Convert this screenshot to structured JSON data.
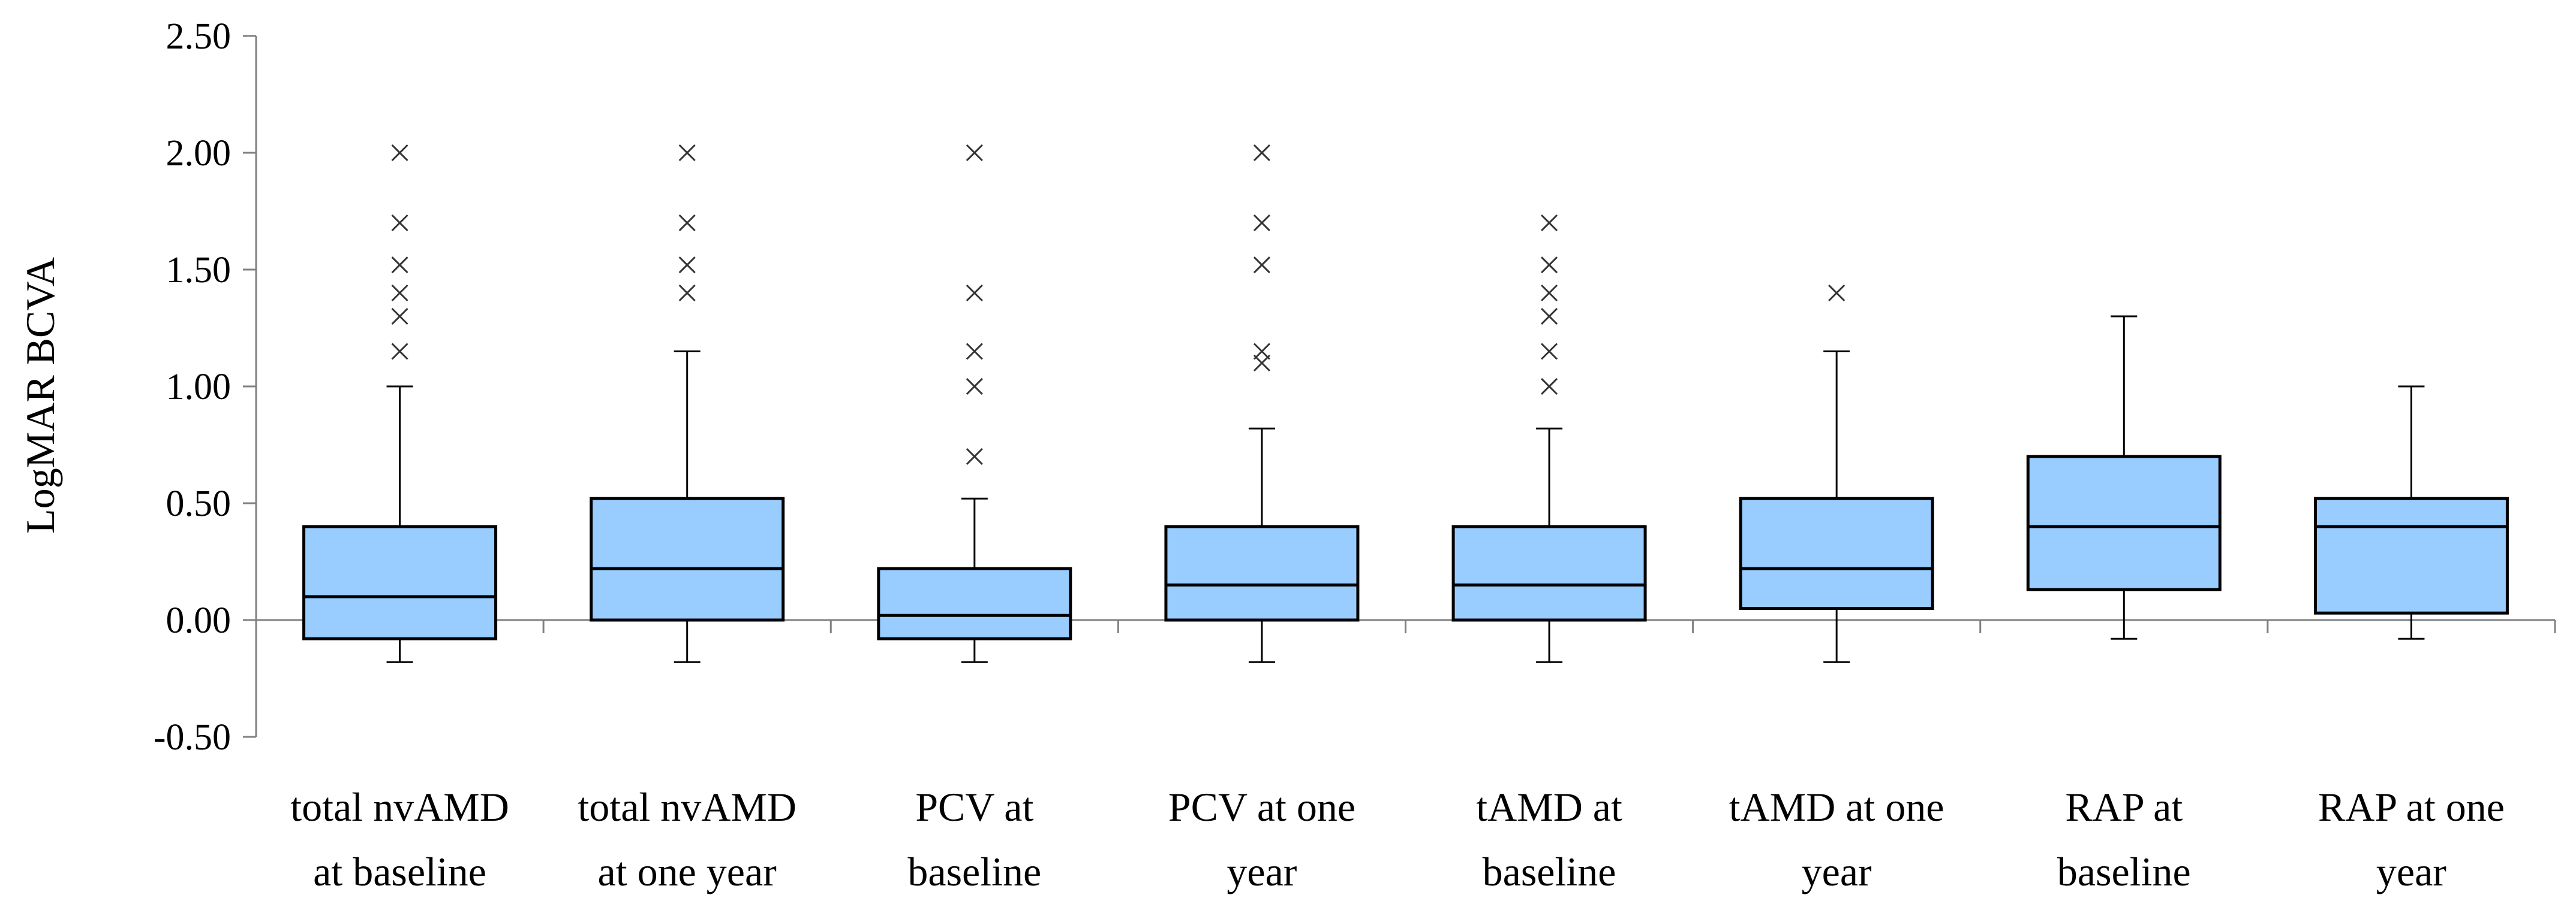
{
  "chart_data": {
    "type": "boxplot",
    "title": "",
    "xlabel": "",
    "ylabel": "LogMAR  BCVA",
    "ylim": [
      -0.5,
      2.5
    ],
    "yticks": [
      2.5,
      2.0,
      1.5,
      1.0,
      0.5,
      0.0,
      -0.5
    ],
    "ytick_labels": [
      "2.50",
      "2.00",
      "1.50",
      "1.00",
      "0.50",
      "0.00",
      "-0.50"
    ],
    "box_color": "#99CCFF",
    "line_color": "#000000",
    "axis_color": "#808080",
    "categories": [
      [
        "total nvAMD",
        "at baseline"
      ],
      [
        "total nvAMD",
        "at one year"
      ],
      [
        "PCV at",
        "baseline"
      ],
      [
        "PCV at one",
        "year"
      ],
      [
        "tAMD at",
        "baseline"
      ],
      [
        "tAMD at one",
        "year"
      ],
      [
        "RAP at",
        "baseline"
      ],
      [
        "RAP at one",
        "year"
      ]
    ],
    "boxes": [
      {
        "whisker_low": -0.18,
        "q1": -0.08,
        "median": 0.1,
        "q3": 0.4,
        "whisker_high": 1.0,
        "outliers": [
          1.15,
          1.3,
          1.4,
          1.52,
          1.7,
          2.0
        ]
      },
      {
        "whisker_low": -0.18,
        "q1": 0.0,
        "median": 0.22,
        "q3": 0.52,
        "whisker_high": 1.15,
        "outliers": [
          1.4,
          1.52,
          1.7,
          2.0
        ]
      },
      {
        "whisker_low": -0.18,
        "q1": -0.08,
        "median": 0.02,
        "q3": 0.22,
        "whisker_high": 0.52,
        "outliers": [
          0.7,
          1.0,
          1.15,
          1.4,
          2.0
        ]
      },
      {
        "whisker_low": -0.18,
        "q1": 0.0,
        "median": 0.15,
        "q3": 0.4,
        "whisker_high": 0.82,
        "outliers": [
          1.1,
          1.15,
          1.52,
          1.7,
          2.0
        ]
      },
      {
        "whisker_low": -0.18,
        "q1": 0.0,
        "median": 0.15,
        "q3": 0.4,
        "whisker_high": 0.82,
        "outliers": [
          1.0,
          1.15,
          1.3,
          1.4,
          1.52,
          1.7
        ]
      },
      {
        "whisker_low": -0.18,
        "q1": 0.05,
        "median": 0.22,
        "q3": 0.52,
        "whisker_high": 1.15,
        "outliers": [
          1.4
        ]
      },
      {
        "whisker_low": -0.08,
        "q1": 0.13,
        "median": 0.4,
        "q3": 0.7,
        "whisker_high": 1.3,
        "outliers": []
      },
      {
        "whisker_low": -0.08,
        "q1": 0.03,
        "median": 0.4,
        "q3": 0.52,
        "whisker_high": 1.0,
        "outliers": []
      }
    ]
  }
}
